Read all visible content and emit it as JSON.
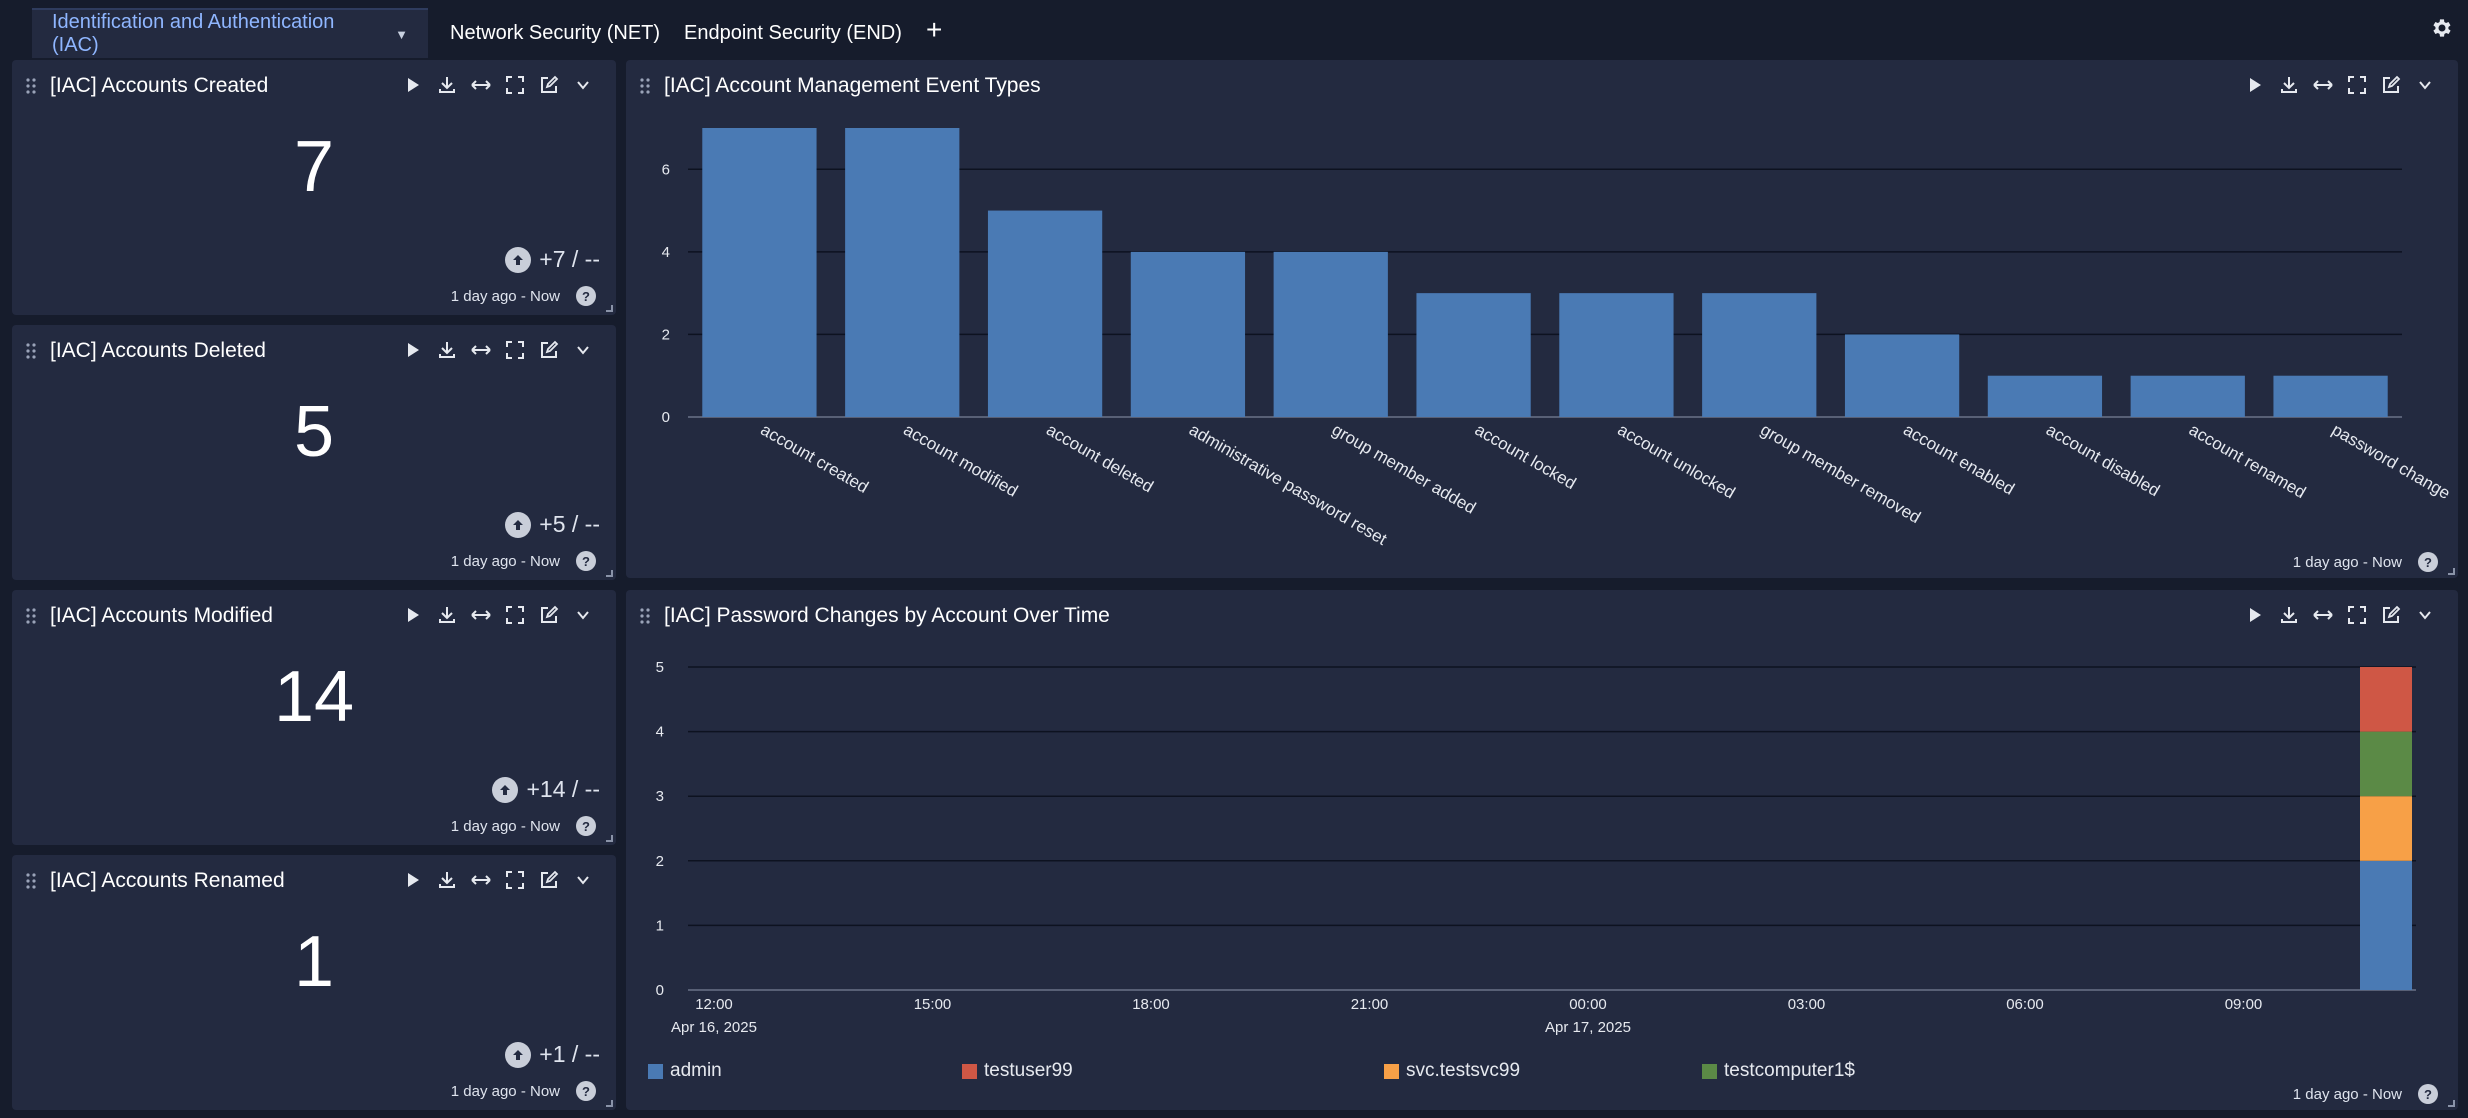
{
  "tabs": [
    {
      "label": "Identification and Authentication (IAC)",
      "active": true
    },
    {
      "label": "Network Security (NET)",
      "active": false
    },
    {
      "label": "Endpoint Security (END)",
      "active": false
    }
  ],
  "add_tab_label": "+",
  "stat_panels": [
    {
      "title": "[IAC] Accounts Created",
      "value": "7",
      "trend": "+7 / --",
      "time_range": "1 day ago - Now"
    },
    {
      "title": "[IAC] Accounts Deleted",
      "value": "5",
      "trend": "+5 / --",
      "time_range": "1 day ago - Now"
    },
    {
      "title": "[IAC] Accounts Modified",
      "value": "14",
      "trend": "+14 / --",
      "time_range": "1 day ago - Now"
    },
    {
      "title": "[IAC] Accounts Renamed",
      "value": "1",
      "trend": "+1 / --",
      "time_range": "1 day ago - Now"
    }
  ],
  "event_panel": {
    "title": "[IAC] Account Management Event Types",
    "time_range": "1 day ago - Now"
  },
  "password_panel": {
    "title": "[IAC] Password Changes by Account Over Time",
    "time_range": "1 day ago - Now"
  },
  "help_glyph": "?",
  "colors": {
    "bar": "#4a7ab4",
    "admin": "#4a7ab4",
    "testuser99": "#cf5745",
    "svc_testsvc99": "#f7a047",
    "testcomputer1": "#5b8a46"
  },
  "icons": [
    "drag-handle-icon",
    "play-icon",
    "download-icon",
    "expand-horizontal-icon",
    "fullscreen-icon",
    "edit-icon",
    "chevron-down-icon",
    "gear-icon",
    "arrow-up-icon",
    "help-icon"
  ],
  "chart_data": [
    {
      "type": "bar",
      "title": "[IAC] Account Management Event Types",
      "categories": [
        "account created",
        "account modified",
        "account deleted",
        "administrative password reset",
        "group member added",
        "account locked",
        "account unlocked",
        "group member removed",
        "account enabled",
        "account disabled",
        "account renamed",
        "password change"
      ],
      "values": [
        7,
        7,
        5,
        4,
        4,
        3,
        3,
        3,
        2,
        1,
        1,
        1
      ],
      "ylim": [
        0,
        7
      ],
      "yticks": [
        0,
        2,
        4,
        6
      ],
      "grid": true
    },
    {
      "type": "bar",
      "stacked": true,
      "title": "[IAC] Password Changes by Account Over Time",
      "x_ticks": [
        {
          "time": "12:00",
          "date": "Apr 16, 2025"
        },
        {
          "time": "15:00",
          "date": ""
        },
        {
          "time": "18:00",
          "date": ""
        },
        {
          "time": "21:00",
          "date": ""
        },
        {
          "time": "00:00",
          "date": "Apr 17, 2025"
        },
        {
          "time": "03:00",
          "date": ""
        },
        {
          "time": "06:00",
          "date": ""
        },
        {
          "time": "09:00",
          "date": ""
        }
      ],
      "series": [
        {
          "name": "admin",
          "values": [
            2
          ]
        },
        {
          "name": "testuser99",
          "values": [
            1
          ]
        },
        {
          "name": "svc.testsvc99",
          "values": [
            1
          ]
        },
        {
          "name": "testcomputer1$",
          "values": [
            1
          ]
        }
      ],
      "stack_order_bottom_to_top": [
        "admin",
        "svc.testsvc99",
        "testcomputer1$",
        "testuser99"
      ],
      "ylim": [
        0,
        5
      ],
      "yticks": [
        0,
        1,
        2,
        3,
        4,
        5
      ],
      "legend": "bottom",
      "grid": true
    }
  ]
}
